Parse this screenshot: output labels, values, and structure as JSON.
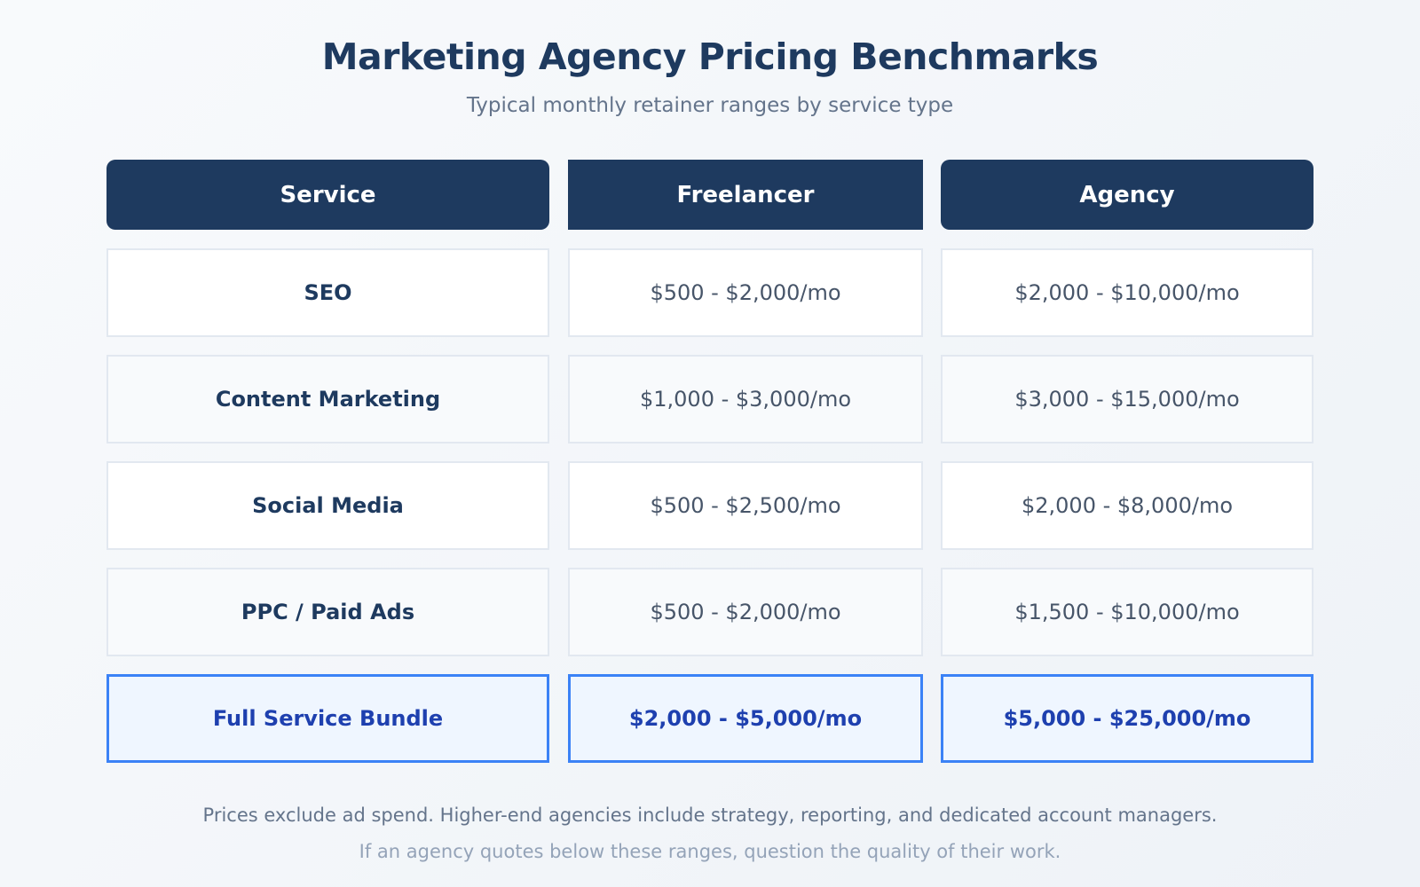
{
  "header": {
    "title": "Marketing Agency Pricing Benchmarks",
    "subtitle": "Typical monthly retainer ranges by service type"
  },
  "table": {
    "columns": [
      "Service",
      "Freelancer",
      "Agency"
    ],
    "rows": [
      [
        "SEO",
        "$500 - $2,000/mo",
        "$2,000 - $10,000/mo"
      ],
      [
        "Content Marketing",
        "$1,000 - $3,000/mo",
        "$3,000 - $15,000/mo"
      ],
      [
        "Social Media",
        "$500 - $2,500/mo",
        "$2,000 - $8,000/mo"
      ],
      [
        "PPC / Paid Ads",
        "$500 - $2,000/mo",
        "$1,500 - $10,000/mo"
      ],
      [
        "Full Service Bundle",
        "$2,000 - $5,000/mo",
        "$5,000 - $25,000/mo"
      ]
    ]
  },
  "footer": {
    "lines": [
      "Prices exclude ad spend. Higher-end agencies include strategy, reporting, and dedicated account managers.",
      "If an agency quotes below these ranges, question the quality of their work."
    ]
  }
}
